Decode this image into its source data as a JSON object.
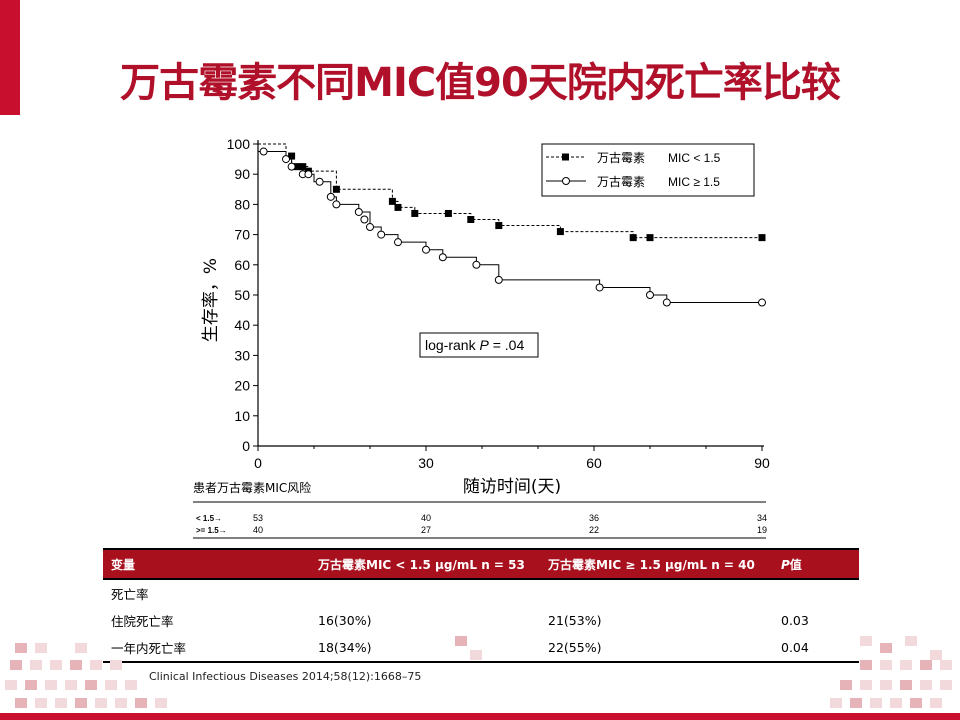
{
  "slide": {
    "title": "万古霉素不同MIC值90天院内死亡率比较",
    "citation": "Clinical Infectious Diseases 2014;58(12):1668–75",
    "accent_color": "#c8102e"
  },
  "chart_data": {
    "type": "line",
    "subtype": "kaplan-meier",
    "xlabel": "随访时间(天)",
    "ylabel": "生存率，%",
    "xlim": [
      0,
      90
    ],
    "ylim": [
      0,
      100
    ],
    "xticks": [
      0,
      30,
      60,
      90
    ],
    "yticks": [
      0,
      10,
      20,
      30,
      40,
      50,
      60,
      70,
      80,
      90,
      100
    ],
    "grid": false,
    "legend_position": "top-right",
    "annotation": {
      "prefix": "log-rank ",
      "italic": "P",
      "suffix": " = .04"
    },
    "series": [
      {
        "name_drug": "万古霉素",
        "name_mic": "MIC < 1.5",
        "marker": "filled-square",
        "dash": "dashed",
        "steps": [
          [
            0,
            100
          ],
          [
            5,
            96
          ],
          [
            6,
            92.5
          ],
          [
            8,
            92.5
          ],
          [
            9,
            91
          ],
          [
            10,
            91
          ],
          [
            14,
            85
          ],
          [
            24,
            81
          ],
          [
            25,
            79
          ],
          [
            28,
            77
          ],
          [
            34,
            77
          ],
          [
            38,
            75
          ],
          [
            43,
            73
          ],
          [
            54,
            71
          ],
          [
            67,
            69
          ],
          [
            90,
            69
          ]
        ],
        "markers": [
          [
            6,
            96
          ],
          [
            7,
            92.5
          ],
          [
            8,
            92.5
          ],
          [
            9,
            91
          ],
          [
            14,
            85
          ],
          [
            24,
            81
          ],
          [
            25,
            79
          ],
          [
            28,
            77
          ],
          [
            34,
            77
          ],
          [
            38,
            75
          ],
          [
            43,
            73
          ],
          [
            54,
            71
          ],
          [
            67,
            69
          ],
          [
            70,
            69
          ],
          [
            90,
            69
          ]
        ]
      },
      {
        "name_drug": "万古霉素",
        "name_mic": "MIC ≥ 1.5",
        "marker": "open-circle",
        "dash": "solid",
        "steps": [
          [
            0,
            97.5
          ],
          [
            4,
            97.5
          ],
          [
            5,
            95
          ],
          [
            6,
            92.5
          ],
          [
            8,
            90
          ],
          [
            10,
            87.5
          ],
          [
            13,
            82.5
          ],
          [
            14,
            80
          ],
          [
            18,
            77.5
          ],
          [
            20,
            72.5
          ],
          [
            22,
            70
          ],
          [
            25,
            67.5
          ],
          [
            30,
            65
          ],
          [
            33,
            62.5
          ],
          [
            39,
            60
          ],
          [
            43,
            55
          ],
          [
            61,
            52.5
          ],
          [
            70,
            50
          ],
          [
            73,
            47.5
          ],
          [
            90,
            47.5
          ]
        ],
        "markers": [
          [
            1,
            97.5
          ],
          [
            5,
            95
          ],
          [
            6,
            92.5
          ],
          [
            8,
            90
          ],
          [
            9,
            90
          ],
          [
            11,
            87.5
          ],
          [
            13,
            82.5
          ],
          [
            14,
            80
          ],
          [
            18,
            77.5
          ],
          [
            19,
            75
          ],
          [
            20,
            72.5
          ],
          [
            22,
            70
          ],
          [
            25,
            67.5
          ],
          [
            30,
            65
          ],
          [
            33,
            62.5
          ],
          [
            39,
            60
          ],
          [
            43,
            55
          ],
          [
            61,
            52.5
          ],
          [
            70,
            50
          ],
          [
            73,
            47.5
          ],
          [
            90,
            47.5
          ]
        ]
      }
    ],
    "risk_table": {
      "label": "患者万古霉素MIC风险",
      "rows": [
        {
          "label": "< 1.5→",
          "values": [
            "53",
            "40",
            "36",
            "34"
          ]
        },
        {
          "label": ">= 1.5→",
          "values": [
            "40",
            "27",
            "22",
            "19"
          ]
        }
      ],
      "times": [
        0,
        30,
        60,
        90
      ]
    }
  },
  "table": {
    "headers": [
      "变量",
      "万古霉素MIC < 1.5 μg/mL n = 53",
      "万古霉素MIC ≥ 1.5 μg/mL n = 40",
      "P值"
    ],
    "header_color": "#a8101e",
    "rows": [
      [
        "死亡率",
        "",
        "",
        ""
      ],
      [
        "住院死亡率",
        "16(30%)",
        "21(53%)",
        "0.03"
      ],
      [
        "一年内死亡率",
        "18(34%)",
        "22(55%)",
        "0.04"
      ]
    ]
  }
}
